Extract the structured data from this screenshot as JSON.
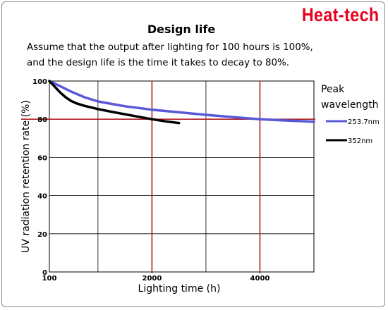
{
  "brand": "Heat-tech",
  "title": "Design life",
  "caption": [
    "Assume that the output after lighting for 100 hours is 100%,",
    "and the design life is the time it takes to decay to 80%."
  ],
  "chart_data": {
    "type": "line",
    "xlabel": "Lighting time (h)",
    "ylabel": "UV radiation retention rate (%)",
    "xlim": [
      100,
      5000
    ],
    "ylim": [
      0,
      100
    ],
    "x_ticks": [
      100,
      2000,
      4000
    ],
    "y_ticks": [
      0,
      20,
      40,
      60,
      80,
      100
    ],
    "x_gridlines": [
      1000,
      2000,
      3000,
      4000
    ],
    "y_gridlines": [
      20,
      40,
      60,
      80
    ],
    "reference_lines": {
      "y": [
        80
      ],
      "x": [
        2000,
        4000
      ],
      "color": "#b01c20"
    },
    "grid": true,
    "legend_title": [
      "Peak",
      "wavelength"
    ],
    "legend_placement": "right",
    "series": [
      {
        "name": "253.7nm",
        "color": "#5858d8",
        "x": [
          100,
          250,
          500,
          750,
          1000,
          1500,
          2000,
          2500,
          3000,
          3500,
          4000,
          4500,
          5000
        ],
        "y": [
          100,
          98,
          94.5,
          91.5,
          89.3,
          86.8,
          85,
          83.6,
          82.3,
          81.1,
          80,
          79.3,
          78.7
        ]
      },
      {
        "name": "352nm",
        "color": "#000000",
        "x": [
          100,
          200,
          300,
          400,
          500,
          600,
          750,
          1000,
          1250,
          1500,
          1750,
          2000,
          2250,
          2500
        ],
        "y": [
          100,
          97,
          94,
          91.5,
          89.6,
          88.3,
          87,
          85.3,
          83.9,
          82.6,
          81.3,
          80,
          78.9,
          78
        ]
      }
    ]
  }
}
